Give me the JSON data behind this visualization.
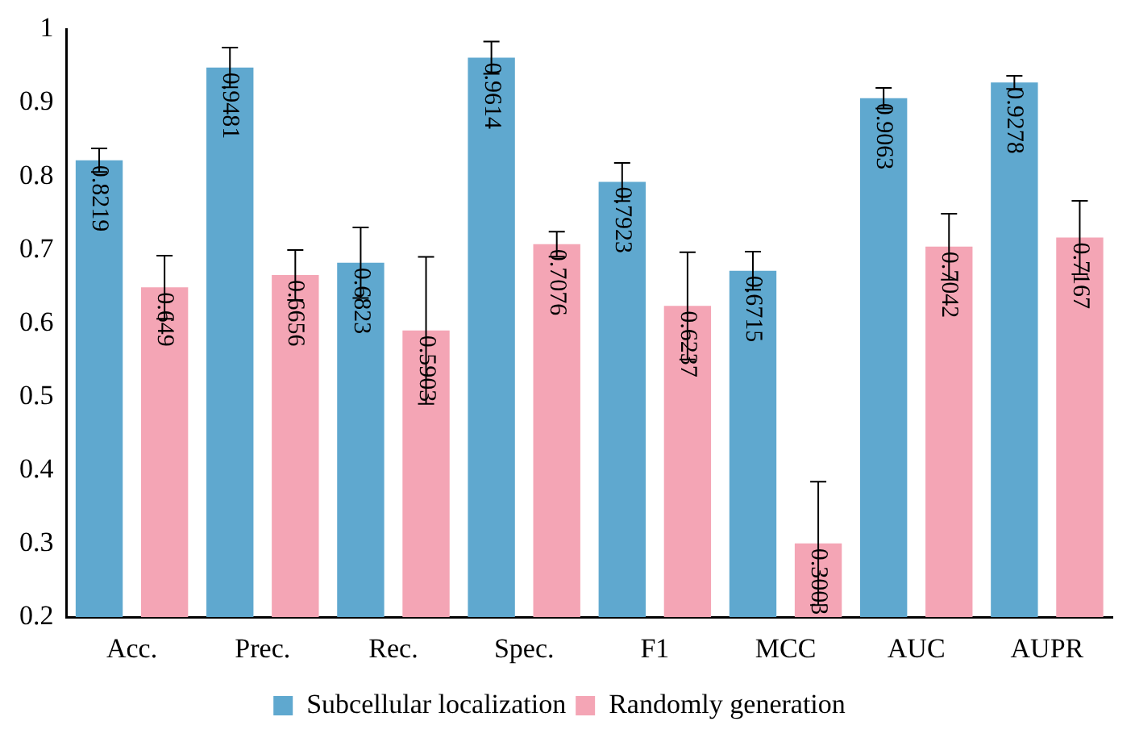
{
  "chart_data": {
    "type": "bar",
    "categories": [
      "Acc.",
      "Prec.",
      "Rec.",
      "Spec.",
      "F1",
      "MCC",
      "AUC",
      "AUPR"
    ],
    "series": [
      {
        "name": "Subcellular localization",
        "color": "#5fa8cf",
        "values": [
          0.8219,
          0.9481,
          0.6823,
          0.9614,
          0.7923,
          0.6715,
          0.9063,
          0.9278
        ],
        "errors": [
          0.016,
          0.027,
          0.048,
          0.022,
          0.026,
          0.026,
          0.014,
          0.009
        ]
      },
      {
        "name": "Randomly generation",
        "color": "#f4a5b5",
        "values": [
          0.649,
          0.6656,
          0.5903,
          0.7076,
          0.6237,
          0.3003,
          0.7042,
          0.7167
        ],
        "errors": [
          0.043,
          0.034,
          0.1,
          0.017,
          0.073,
          0.084,
          0.045,
          0.05
        ]
      }
    ],
    "ylim": [
      0.2,
      1
    ],
    "yticks": [
      0.2,
      0.3,
      0.4,
      0.5,
      0.6,
      0.7,
      0.8,
      0.9,
      1
    ],
    "data_labels": true,
    "grid": false,
    "legend": "bottom"
  }
}
